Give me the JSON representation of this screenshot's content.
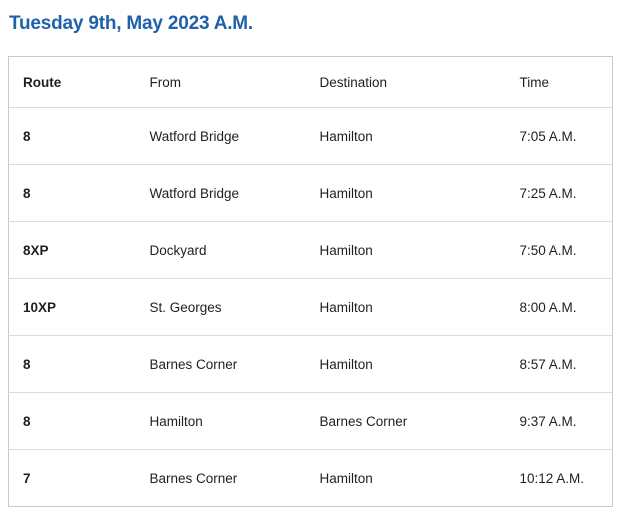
{
  "page": {
    "title": "Tuesday 9th, May 2023 A.M.",
    "accent_color": "#2161ab",
    "border_color": "#c9c9c9",
    "divider_color": "#dcdcdc",
    "text_color": "#1f1f1f",
    "background_color": "#ffffff"
  },
  "schedule_table": {
    "columns": [
      "Route",
      "From",
      "Destination",
      "Time"
    ],
    "rows": [
      {
        "route": "8",
        "from": "Watford Bridge",
        "destination": "Hamilton",
        "time": "7:05 A.M."
      },
      {
        "route": "8",
        "from": "Watford Bridge",
        "destination": "Hamilton",
        "time": "7:25 A.M."
      },
      {
        "route": "8XP",
        "from": "Dockyard",
        "destination": "Hamilton",
        "time": "7:50 A.M."
      },
      {
        "route": "10XP",
        "from": "St. Georges",
        "destination": "Hamilton",
        "time": "8:00 A.M."
      },
      {
        "route": "8",
        "from": "Barnes Corner",
        "destination": "Hamilton",
        "time": "8:57 A.M."
      },
      {
        "route": "8",
        "from": "Hamilton",
        "destination": "Barnes Corner",
        "time": "9:37 A.M."
      },
      {
        "route": "7",
        "from": "Barnes Corner",
        "destination": "Hamilton",
        "time": "10:12 A.M."
      }
    ]
  }
}
